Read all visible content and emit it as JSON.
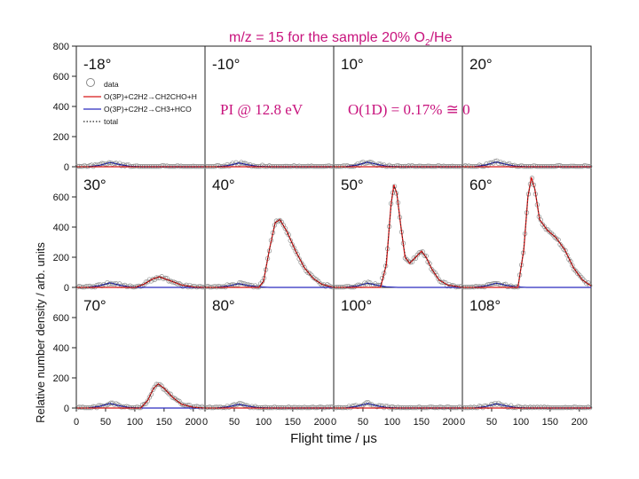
{
  "chart_data": {
    "type": "line",
    "title": "m/z = 15 for the sample 20% O2/He",
    "xlabel": "Flight time / μs",
    "ylabel": "Relative number density / arb. units",
    "annotations": [
      "PI @ 12.8 eV",
      "O(1D) = 0.17% ≅ 0"
    ],
    "xlim": [
      0,
      220
    ],
    "ylim": [
      0,
      800
    ],
    "x_ticks": [
      0,
      50,
      100,
      150,
      200
    ],
    "y_ticks": [
      0,
      200,
      400,
      600,
      800
    ],
    "legend": {
      "placement": "top-left",
      "entries": [
        {
          "label": "data",
          "style": "open-circle",
          "color": "#888888"
        },
        {
          "label": "O(3P)+C2H2→CH2CHO+H",
          "style": "solid",
          "color": "#d81818"
        },
        {
          "label": "O(3P)+C2H2→CH3+HCO",
          "style": "solid",
          "color": "#2b2bbf"
        },
        {
          "label": "total",
          "style": "dotted",
          "color": "#222222"
        }
      ]
    },
    "colors": {
      "data": "#8c8c8c",
      "ch2cho": "#d81818",
      "ch3": "#2b2bbf",
      "total": "#222222",
      "title": "#c8137d"
    },
    "panels": [
      {
        "angle": "-18°",
        "ch3": [
          [
            20,
            0
          ],
          [
            40,
            10
          ],
          [
            58,
            28
          ],
          [
            75,
            14
          ],
          [
            90,
            4
          ],
          [
            110,
            0
          ],
          [
            220,
            0
          ]
        ],
        "ch2cho": [
          [
            0,
            0
          ],
          [
            220,
            0
          ]
        ]
      },
      {
        "angle": "-10°",
        "ch3": [
          [
            20,
            0
          ],
          [
            40,
            8
          ],
          [
            58,
            25
          ],
          [
            75,
            12
          ],
          [
            90,
            3
          ],
          [
            110,
            0
          ],
          [
            220,
            0
          ]
        ],
        "ch2cho": [
          [
            0,
            0
          ],
          [
            220,
            0
          ]
        ]
      },
      {
        "angle": "10°",
        "ch3": [
          [
            20,
            0
          ],
          [
            40,
            12
          ],
          [
            58,
            30
          ],
          [
            75,
            15
          ],
          [
            90,
            4
          ],
          [
            110,
            0
          ],
          [
            220,
            0
          ]
        ],
        "ch2cho": [
          [
            0,
            0
          ],
          [
            220,
            0
          ]
        ]
      },
      {
        "angle": "20°",
        "ch3": [
          [
            20,
            0
          ],
          [
            40,
            12
          ],
          [
            58,
            32
          ],
          [
            75,
            16
          ],
          [
            90,
            5
          ],
          [
            110,
            0
          ],
          [
            220,
            0
          ]
        ],
        "ch2cho": [
          [
            0,
            0
          ],
          [
            220,
            0
          ]
        ]
      },
      {
        "angle": "30°",
        "ch3": [
          [
            20,
            0
          ],
          [
            40,
            12
          ],
          [
            58,
            30
          ],
          [
            75,
            14
          ],
          [
            90,
            4
          ],
          [
            110,
            0
          ],
          [
            220,
            0
          ]
        ],
        "ch2cho": [
          [
            0,
            0
          ],
          [
            100,
            0
          ],
          [
            115,
            20
          ],
          [
            130,
            55
          ],
          [
            142,
            70
          ],
          [
            160,
            45
          ],
          [
            180,
            15
          ],
          [
            200,
            3
          ],
          [
            220,
            0
          ]
        ]
      },
      {
        "angle": "40°",
        "ch3": [
          [
            20,
            0
          ],
          [
            40,
            10
          ],
          [
            58,
            25
          ],
          [
            75,
            12
          ],
          [
            90,
            4
          ],
          [
            110,
            0
          ],
          [
            220,
            0
          ]
        ],
        "ch2cho": [
          [
            0,
            0
          ],
          [
            92,
            0
          ],
          [
            100,
            40
          ],
          [
            110,
            250
          ],
          [
            120,
            430
          ],
          [
            128,
            450
          ],
          [
            140,
            370
          ],
          [
            155,
            240
          ],
          [
            170,
            130
          ],
          [
            185,
            60
          ],
          [
            200,
            20
          ],
          [
            220,
            0
          ]
        ]
      },
      {
        "angle": "50°",
        "ch3": [
          [
            20,
            0
          ],
          [
            40,
            10
          ],
          [
            58,
            28
          ],
          [
            75,
            14
          ],
          [
            90,
            4
          ],
          [
            110,
            0
          ],
          [
            220,
            0
          ]
        ],
        "ch2cho": [
          [
            0,
            0
          ],
          [
            80,
            0
          ],
          [
            90,
            150
          ],
          [
            98,
            550
          ],
          [
            103,
            680
          ],
          [
            108,
            620
          ],
          [
            115,
            400
          ],
          [
            122,
            200
          ],
          [
            130,
            160
          ],
          [
            140,
            200
          ],
          [
            150,
            240
          ],
          [
            158,
            200
          ],
          [
            168,
            120
          ],
          [
            180,
            50
          ],
          [
            195,
            15
          ],
          [
            220,
            0
          ]
        ]
      },
      {
        "angle": "60°",
        "ch3": [
          [
            20,
            0
          ],
          [
            40,
            10
          ],
          [
            58,
            28
          ],
          [
            75,
            14
          ],
          [
            90,
            4
          ],
          [
            110,
            0
          ],
          [
            220,
            0
          ]
        ],
        "ch2cho": [
          [
            0,
            0
          ],
          [
            95,
            0
          ],
          [
            105,
            250
          ],
          [
            112,
            600
          ],
          [
            118,
            730
          ],
          [
            124,
            650
          ],
          [
            132,
            450
          ],
          [
            145,
            380
          ],
          [
            160,
            330
          ],
          [
            175,
            250
          ],
          [
            190,
            130
          ],
          [
            205,
            50
          ],
          [
            220,
            10
          ]
        ]
      },
      {
        "angle": "70°",
        "ch3": [
          [
            20,
            0
          ],
          [
            40,
            12
          ],
          [
            58,
            30
          ],
          [
            75,
            14
          ],
          [
            90,
            4
          ],
          [
            110,
            0
          ],
          [
            220,
            0
          ]
        ],
        "ch2cho": [
          [
            0,
            0
          ],
          [
            110,
            0
          ],
          [
            122,
            50
          ],
          [
            132,
            130
          ],
          [
            140,
            160
          ],
          [
            150,
            130
          ],
          [
            165,
            70
          ],
          [
            180,
            25
          ],
          [
            200,
            5
          ],
          [
            220,
            0
          ]
        ]
      },
      {
        "angle": "80°",
        "ch3": [
          [
            20,
            0
          ],
          [
            40,
            8
          ],
          [
            58,
            25
          ],
          [
            75,
            12
          ],
          [
            90,
            3
          ],
          [
            110,
            0
          ],
          [
            220,
            0
          ]
        ],
        "ch2cho": [
          [
            0,
            0
          ],
          [
            220,
            0
          ]
        ]
      },
      {
        "angle": "100°",
        "ch3": [
          [
            20,
            0
          ],
          [
            40,
            12
          ],
          [
            58,
            30
          ],
          [
            75,
            14
          ],
          [
            90,
            4
          ],
          [
            110,
            0
          ],
          [
            220,
            0
          ]
        ],
        "ch2cho": [
          [
            0,
            0
          ],
          [
            220,
            0
          ]
        ]
      },
      {
        "angle": "108°",
        "ch3": [
          [
            20,
            0
          ],
          [
            40,
            10
          ],
          [
            58,
            28
          ],
          [
            75,
            14
          ],
          [
            90,
            4
          ],
          [
            110,
            0
          ],
          [
            220,
            0
          ]
        ],
        "ch2cho": [
          [
            0,
            0
          ],
          [
            220,
            0
          ]
        ]
      }
    ]
  }
}
